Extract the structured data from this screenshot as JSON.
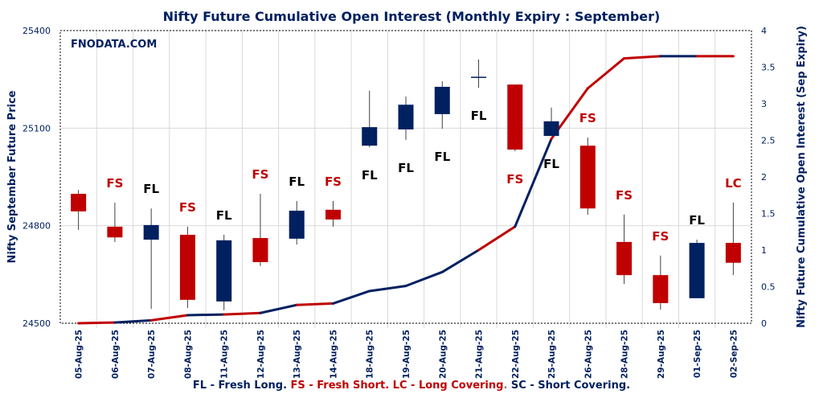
{
  "chart_data": {
    "type": "candlestick+line",
    "title": "Nifty Future Cumulative Open Interest (Monthly Expiry : September)",
    "watermark": "FNODATA.COM",
    "ylabel": "Nifty September Future Price",
    "y2label": "Nifty Future Cumulative Open Interest (Sep Expiry)",
    "ylim": [
      24500,
      25400
    ],
    "yticks": [
      "24500",
      "24800",
      "25100",
      "25400"
    ],
    "y2lim": [
      0,
      4
    ],
    "y2ticks": [
      "0",
      "0.5",
      "1",
      "1.5",
      "2",
      "2.5",
      "3",
      "3.5",
      "4"
    ],
    "grid": true,
    "colors": {
      "up": "#002060",
      "down": "#C00000",
      "FL": "#000000",
      "FS": "#C00000",
      "LC": "#C00000",
      "SC": "#002060"
    },
    "categories": [
      "05-Aug-25",
      "06-Aug-25",
      "07-Aug-25",
      "08-Aug-25",
      "11-Aug-25",
      "12-Aug-25",
      "13-Aug-25",
      "14-Aug-25",
      "18-Aug-25",
      "19-Aug-25",
      "20-Aug-25",
      "21-Aug-25",
      "22-Aug-25",
      "25-Aug-25",
      "26-Aug-25",
      "28-Aug-25",
      "29-Aug-25",
      "01-Sep-25",
      "02-Sep-25"
    ],
    "ohlc": [
      [
        24898,
        24910,
        24787,
        24844
      ],
      [
        24797,
        24871,
        24750,
        24764
      ],
      [
        24757,
        24853,
        24544,
        24802
      ],
      [
        24772,
        24797,
        24547,
        24572
      ],
      [
        24567,
        24772,
        24540,
        24755
      ],
      [
        24762,
        24898,
        24676,
        24688
      ],
      [
        24760,
        24876,
        24742,
        24846
      ],
      [
        24849,
        24876,
        24797,
        24819
      ],
      [
        25046,
        25215,
        25041,
        25103
      ],
      [
        25096,
        25197,
        25064,
        25172
      ],
      [
        25143,
        25244,
        25098,
        25227
      ],
      [
        25257,
        25311,
        25224,
        25258
      ],
      [
        25234,
        25234,
        25029,
        25034
      ],
      [
        25076,
        25163,
        25076,
        25121
      ],
      [
        25046,
        25071,
        24834,
        24853
      ],
      [
        24750,
        24834,
        24621,
        24648
      ],
      [
        24648,
        24708,
        24542,
        24562
      ],
      [
        24577,
        24757,
        24577,
        24747
      ],
      [
        24747,
        24871,
        24648,
        24686
      ]
    ],
    "cumulative_oi": [
      0.0,
      0.01,
      0.04,
      0.11,
      0.12,
      0.14,
      0.25,
      0.27,
      0.44,
      0.51,
      0.7,
      1.0,
      1.32,
      2.52,
      3.21,
      3.62,
      3.65,
      3.65,
      3.65
    ],
    "signals": [
      "",
      "FS",
      "FL",
      "FS",
      "FL",
      "FS",
      "FL",
      "FS",
      "FL",
      "FL",
      "FL",
      "FL",
      "FS",
      "FL",
      "FS",
      "FS",
      "FS",
      "FL",
      "LC"
    ],
    "signal_placement": [
      "",
      "above",
      "above",
      "above",
      "above",
      "above",
      "above",
      "above",
      "below",
      "below",
      "below",
      "below",
      "below",
      "below",
      "above",
      "above",
      "above",
      "above",
      "above"
    ],
    "legend": [
      {
        "text": "FL - Fresh Long. ",
        "color": "#002060"
      },
      {
        "text": "FS - Fresh Short. ",
        "color": "#C00000"
      },
      {
        "text": "LC - Long Covering",
        "color": "#C00000"
      },
      {
        "text": ". ",
        "color": "#7f7f7f"
      },
      {
        "text": "SC - Short Covering.",
        "color": "#002060"
      }
    ]
  }
}
